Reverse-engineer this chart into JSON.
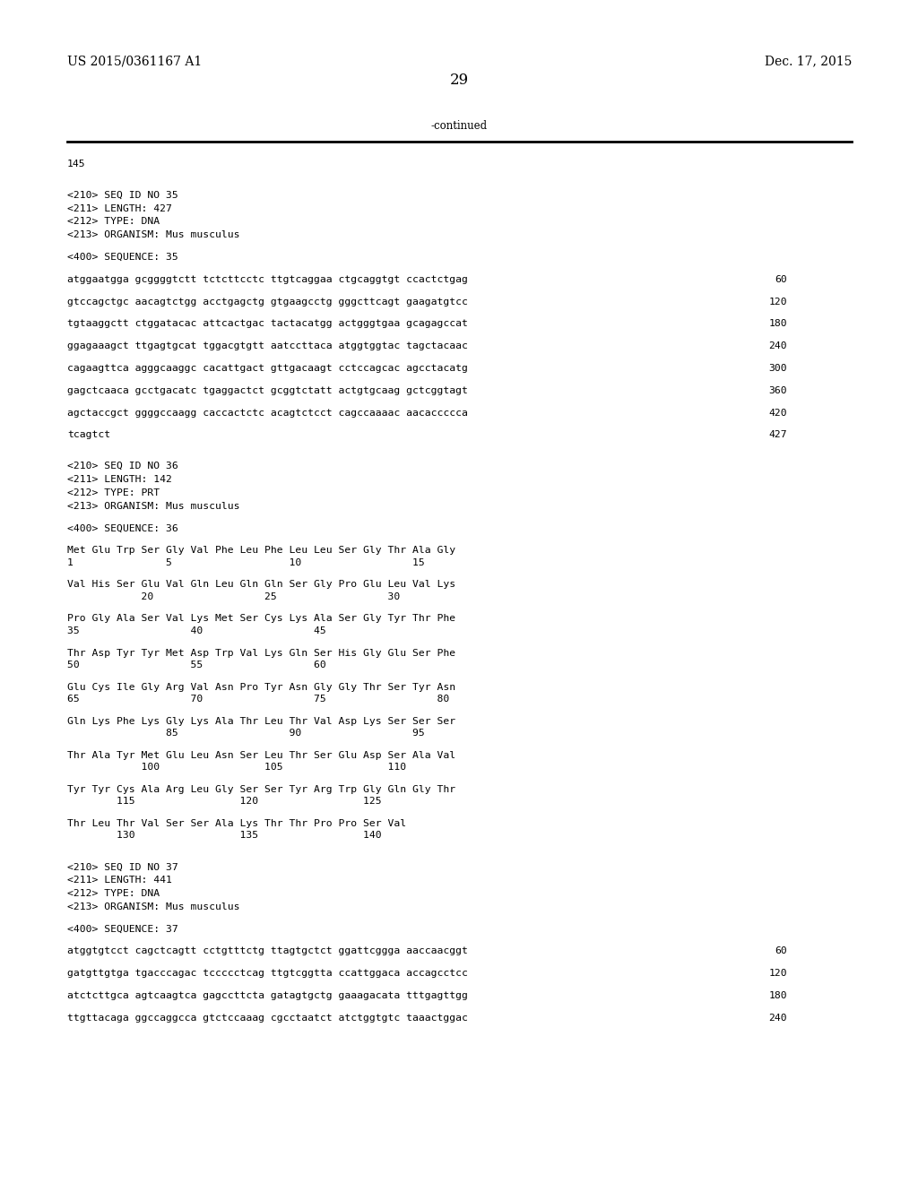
{
  "background_color": "#ffffff",
  "header_left": "US 2015/0361167 A1",
  "header_right": "Dec. 17, 2015",
  "page_number": "29",
  "continued_text": "-continued",
  "font_size_header": 10,
  "font_size_pagenum": 12,
  "monospace_size": 8.2,
  "content": [
    {
      "type": "text",
      "text": "145"
    },
    {
      "type": "blank"
    },
    {
      "type": "blank"
    },
    {
      "type": "text",
      "text": "<210> SEQ ID NO 35"
    },
    {
      "type": "text",
      "text": "<211> LENGTH: 427"
    },
    {
      "type": "text",
      "text": "<212> TYPE: DNA"
    },
    {
      "type": "text",
      "text": "<213> ORGANISM: Mus musculus"
    },
    {
      "type": "blank"
    },
    {
      "type": "text",
      "text": "<400> SEQUENCE: 35"
    },
    {
      "type": "blank"
    },
    {
      "type": "seq_dna",
      "seq": "atggaatgga gcggggtctt tctcttcctc ttgtcaggaa ctgcaggtgt ccactctgag",
      "num": "60"
    },
    {
      "type": "blank"
    },
    {
      "type": "seq_dna",
      "seq": "gtccagctgc aacagtctgg acctgagctg gtgaagcctg gggcttcagt gaagatgtcc",
      "num": "120"
    },
    {
      "type": "blank"
    },
    {
      "type": "seq_dna",
      "seq": "tgtaaggctt ctggatacac attcactgac tactacatgg actgggtgaa gcagagccat",
      "num": "180"
    },
    {
      "type": "blank"
    },
    {
      "type": "seq_dna",
      "seq": "ggagaaagct ttgagtgcat tggacgtgtt aatccttaca atggtggtac tagctacaac",
      "num": "240"
    },
    {
      "type": "blank"
    },
    {
      "type": "seq_dna",
      "seq": "cagaagttca agggcaaggc cacattgact gttgacaagt cctccagcac agcctacatg",
      "num": "300"
    },
    {
      "type": "blank"
    },
    {
      "type": "seq_dna",
      "seq": "gagctcaaca gcctgacatc tgaggactct gcggtctatt actgtgcaag gctcggtagt",
      "num": "360"
    },
    {
      "type": "blank"
    },
    {
      "type": "seq_dna",
      "seq": "agctaccgct ggggccaagg caccactctc acagtctcct cagccaaaac aacaccccca",
      "num": "420"
    },
    {
      "type": "blank"
    },
    {
      "type": "seq_dna",
      "seq": "tcagtct",
      "num": "427"
    },
    {
      "type": "blank"
    },
    {
      "type": "blank"
    },
    {
      "type": "text",
      "text": "<210> SEQ ID NO 36"
    },
    {
      "type": "text",
      "text": "<211> LENGTH: 142"
    },
    {
      "type": "text",
      "text": "<212> TYPE: PRT"
    },
    {
      "type": "text",
      "text": "<213> ORGANISM: Mus musculus"
    },
    {
      "type": "blank"
    },
    {
      "type": "text",
      "text": "<400> SEQUENCE: 36"
    },
    {
      "type": "blank"
    },
    {
      "type": "seq_prt",
      "seq": "Met Glu Trp Ser Gly Val Phe Leu Phe Leu Leu Ser Gly Thr Ala Gly",
      "nums": "1               5                   10                  15"
    },
    {
      "type": "blank"
    },
    {
      "type": "seq_prt",
      "seq": "Val His Ser Glu Val Gln Leu Gln Gln Ser Gly Pro Glu Leu Val Lys",
      "nums": "            20                  25                  30"
    },
    {
      "type": "blank"
    },
    {
      "type": "seq_prt",
      "seq": "Pro Gly Ala Ser Val Lys Met Ser Cys Lys Ala Ser Gly Tyr Thr Phe",
      "nums": "35                  40                  45"
    },
    {
      "type": "blank"
    },
    {
      "type": "seq_prt",
      "seq": "Thr Asp Tyr Tyr Met Asp Trp Val Lys Gln Ser His Gly Glu Ser Phe",
      "nums": "50                  55                  60"
    },
    {
      "type": "blank"
    },
    {
      "type": "seq_prt",
      "seq": "Glu Cys Ile Gly Arg Val Asn Pro Tyr Asn Gly Gly Thr Ser Tyr Asn",
      "nums": "65                  70                  75                  80"
    },
    {
      "type": "blank"
    },
    {
      "type": "seq_prt",
      "seq": "Gln Lys Phe Lys Gly Lys Ala Thr Leu Thr Val Asp Lys Ser Ser Ser",
      "nums": "                85                  90                  95"
    },
    {
      "type": "blank"
    },
    {
      "type": "seq_prt",
      "seq": "Thr Ala Tyr Met Glu Leu Asn Ser Leu Thr Ser Glu Asp Ser Ala Val",
      "nums": "            100                 105                 110"
    },
    {
      "type": "blank"
    },
    {
      "type": "seq_prt",
      "seq": "Tyr Tyr Cys Ala Arg Leu Gly Ser Ser Tyr Arg Trp Gly Gln Gly Thr",
      "nums": "        115                 120                 125"
    },
    {
      "type": "blank"
    },
    {
      "type": "seq_prt",
      "seq": "Thr Leu Thr Val Ser Ser Ala Lys Thr Thr Pro Pro Ser Val",
      "nums": "        130                 135                 140"
    },
    {
      "type": "blank"
    },
    {
      "type": "blank"
    },
    {
      "type": "text",
      "text": "<210> SEQ ID NO 37"
    },
    {
      "type": "text",
      "text": "<211> LENGTH: 441"
    },
    {
      "type": "text",
      "text": "<212> TYPE: DNA"
    },
    {
      "type": "text",
      "text": "<213> ORGANISM: Mus musculus"
    },
    {
      "type": "blank"
    },
    {
      "type": "text",
      "text": "<400> SEQUENCE: 37"
    },
    {
      "type": "blank"
    },
    {
      "type": "seq_dna",
      "seq": "atggtgtcct cagctcagtt cctgtttctg ttagtgctct ggattcggga aaccaacggt",
      "num": "60"
    },
    {
      "type": "blank"
    },
    {
      "type": "seq_dna",
      "seq": "gatgttgtga tgacccagac tccccctcag ttgtcggtta ccattggaca accagcctcc",
      "num": "120"
    },
    {
      "type": "blank"
    },
    {
      "type": "seq_dna",
      "seq": "atctcttgca agtcaagtca gagccttcta gatagtgctg gaaagacata tttgagttgg",
      "num": "180"
    },
    {
      "type": "blank"
    },
    {
      "type": "seq_dna",
      "seq": "ttgttacaga ggccaggcca gtctccaaag cgcctaatct atctggtgtc taaactggac",
      "num": "240"
    }
  ]
}
